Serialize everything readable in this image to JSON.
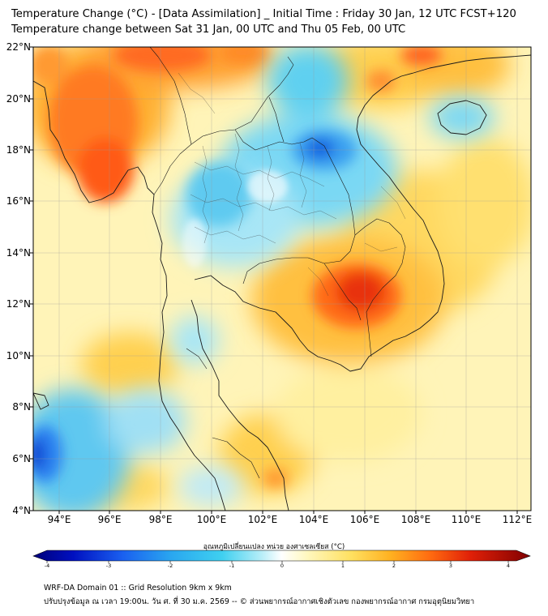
{
  "title": {
    "line1": "Temperature Change (°C) - [Data Assimilation] _ Initial Time : Friday 30 Jan, 12 UTC FCST+120",
    "line2": "Temperature change between Sat 31 Jan, 00 UTC and Thu 05 Feb, 00 UTC"
  },
  "axes": {
    "lat_labels": [
      "22°N",
      "20°N",
      "18°N",
      "16°N",
      "14°N",
      "12°N",
      "10°N",
      "8°N",
      "6°N",
      "4°N"
    ],
    "lon_labels": [
      "94°E",
      "96°E",
      "98°E",
      "100°E",
      "102°E",
      "104°E",
      "106°E",
      "108°E",
      "110°E",
      "112°E"
    ],
    "lat_range": [
      4,
      22
    ],
    "lon_range": [
      93,
      112.6
    ]
  },
  "colorbar": {
    "title": "อุณหภูมิเปลี่ยนแปลง หน่วย องศาเซลเซียส (°C)",
    "ticks": [
      "-4",
      "-3",
      "-2",
      "-1",
      "0",
      "1",
      "2",
      "3",
      "4"
    ],
    "range": [
      -4,
      4
    ]
  },
  "footer": {
    "line1": "WRF-DA Domain 01 :: Grid Resolution 9km x 9km",
    "line2": "ปรับปรุงข้อมูล ณ เวลา 19:00น. วัน ศ. ที่ 30 ม.ค. 2569 -- © ส่วนพยากรณ์อากาศเชิงตัวเลข กองพยากรณ์อากาศ กรมอุตุนิยมวิทยา"
  },
  "colors": {
    "background": "#fffde0",
    "cold": "#3cc8f0",
    "cold_strong": "#1060e0",
    "warm": "#ffd040",
    "hot": "#ff7020",
    "hottest": "#e83010",
    "coast": "#1a1a1a"
  }
}
